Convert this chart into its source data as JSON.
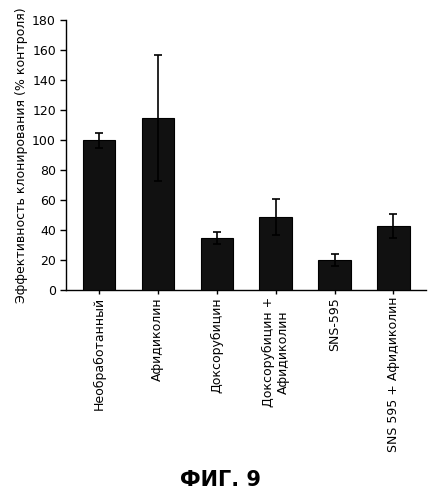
{
  "categories": [
    "Необработанный",
    "Афидиколин",
    "Доксорубицин",
    "Доксорубицин +\nАфидиколин",
    "SNS-595",
    "SNS 595 + Афидиколин"
  ],
  "values": [
    100,
    115,
    35,
    49,
    20,
    43
  ],
  "errors": [
    5,
    42,
    4,
    12,
    4,
    8
  ],
  "bar_color": "#111111",
  "edgecolor": "#000000",
  "ylabel": "Эффективность клонирования (% контроля)",
  "ylim": [
    0,
    180
  ],
  "yticks": [
    0,
    20,
    40,
    60,
    80,
    100,
    120,
    140,
    160,
    180
  ],
  "figure_title": "ФИГ. 9",
  "background_color": "#ffffff",
  "bar_width": 0.55,
  "tick_fontsize": 9,
  "ylabel_fontsize": 9,
  "title_fontsize": 15
}
